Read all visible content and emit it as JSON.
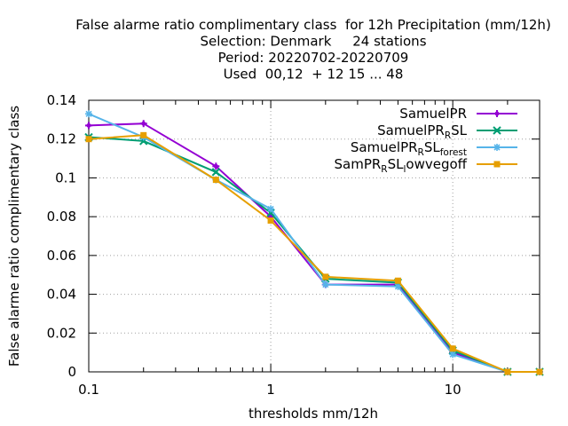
{
  "title_lines": [
    "False alarme ratio complimentary class  for 12h Precipitation (mm/12h)",
    "Selection: Denmark     24 stations",
    "Period: 20220702-20220709",
    "Used  00,12  + 12 15 ... 48"
  ],
  "chart_data": {
    "type": "line",
    "xlabel": "thresholds mm/12h",
    "ylabel": "False alarme ratio complimentary class",
    "x_scale": "log",
    "xlim": [
      0.1,
      30
    ],
    "ylim": [
      0,
      0.14
    ],
    "x_ticks": [
      0.1,
      1,
      10
    ],
    "x_tick_labels": [
      "0.1",
      "1",
      "10"
    ],
    "y_ticks": [
      0,
      0.02,
      0.04,
      0.06,
      0.08,
      0.1,
      0.12,
      0.14
    ],
    "y_tick_labels": [
      "0",
      "0.02",
      "0.04",
      "0.06",
      "0.08",
      "0.1",
      "0.12",
      "0.14"
    ],
    "grid": true,
    "legend_position": "top-right",
    "x": [
      0.1,
      0.2,
      0.5,
      1,
      2,
      5,
      10,
      20,
      30
    ],
    "series": [
      {
        "name": "SamuelPR",
        "legend": [
          {
            "t": "SamuelPR",
            "s": ""
          }
        ],
        "color": "#9400d3",
        "marker": "plus",
        "values": [
          0.127,
          0.128,
          0.106,
          0.08,
          0.045,
          0.045,
          0.01,
          0.0,
          0.0
        ]
      },
      {
        "name": "SamuelPR_R SL",
        "legend": [
          {
            "t": "SamuelPR",
            "s": ""
          },
          {
            "t": "R",
            "s": "sub"
          },
          {
            "t": "SL",
            "s": ""
          }
        ],
        "color": "#009e73",
        "marker": "x",
        "values": [
          0.121,
          0.119,
          0.103,
          0.082,
          0.048,
          0.046,
          0.011,
          0.0,
          0.0
        ]
      },
      {
        "name": "SamuelPR_R SL_forest",
        "legend": [
          {
            "t": "SamuelPR",
            "s": ""
          },
          {
            "t": "R",
            "s": "sub"
          },
          {
            "t": "SL",
            "s": ""
          },
          {
            "t": "forest",
            "s": "sub"
          }
        ],
        "color": "#56b4e9",
        "marker": "star",
        "values": [
          0.133,
          0.121,
          0.099,
          0.084,
          0.045,
          0.044,
          0.009,
          0.0,
          0.0
        ]
      },
      {
        "name": "SamPR_R SL_lowvegoff",
        "legend": [
          {
            "t": "SamPR",
            "s": ""
          },
          {
            "t": "R",
            "s": "sub"
          },
          {
            "t": "SL",
            "s": ""
          },
          {
            "t": "l",
            "s": "sub"
          },
          {
            "t": "owvegoff",
            "s": ""
          }
        ],
        "color": "#e69f00",
        "marker": "box",
        "values": [
          0.12,
          0.122,
          0.099,
          0.078,
          0.049,
          0.047,
          0.012,
          0.0,
          0.0
        ]
      }
    ]
  }
}
